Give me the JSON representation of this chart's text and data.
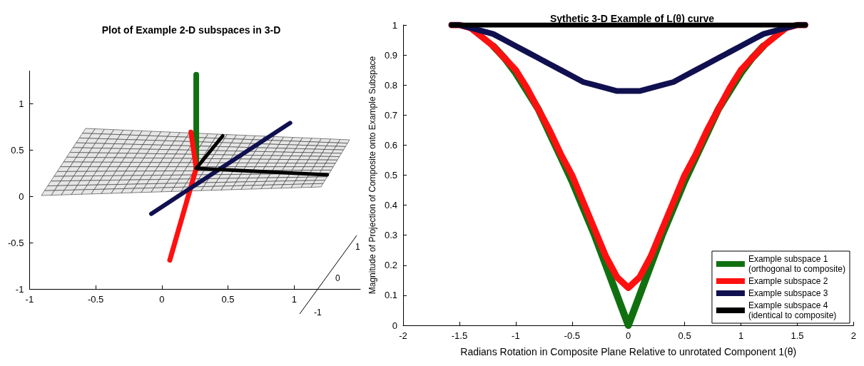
{
  "chart_data": [
    {
      "type": "line",
      "title": "Plot of Example 2-D subspaces in 3-D",
      "xlim": [
        -1,
        1.5
      ],
      "ylim": [
        -1,
        1.35
      ],
      "xticks": [
        -1,
        -0.5,
        0,
        0.5,
        1
      ],
      "yticks": [
        -1,
        -0.5,
        0,
        0.5,
        1
      ],
      "grid": false,
      "marker": "none",
      "line_style": "solid",
      "annotations": [
        "1",
        "0",
        "-1"
      ],
      "series": [
        {
          "color": "#107010",
          "x": [
            0.26,
            0.26
          ],
          "values": [
            1.31,
            0.3
          ]
        },
        {
          "color": "#ff1010",
          "x": [
            0.22,
            0.26,
            0.06
          ],
          "values": [
            0.69,
            0.3,
            -0.69
          ]
        },
        {
          "color": "#101050",
          "x": [
            -0.08,
            0.97
          ],
          "values": [
            -0.19,
            0.79
          ]
        },
        {
          "color": "#000000",
          "x": [
            0.46,
            0.26,
            1.25
          ],
          "values": [
            0.65,
            0.3,
            0.23
          ]
        }
      ]
    },
    {
      "type": "line",
      "title": "Sythetic 3-D Example of L(θ) curve",
      "xlabel": "Radians Rotation in Composite Plane Relative to unrotated Component 1(θ)",
      "ylabel": "Magnitude of Projection of Composite onto Example Subspace",
      "xlim": [
        -2,
        2
      ],
      "ylim": [
        0,
        1
      ],
      "xticks": [
        -2,
        -1.5,
        -1,
        -0.5,
        0,
        0.5,
        1,
        1.5,
        2
      ],
      "yticks": [
        0,
        0.1,
        0.2,
        0.3,
        0.4,
        0.5,
        0.6,
        0.7,
        0.8,
        0.9,
        1
      ],
      "grid": false,
      "legend": "bottom right",
      "marker": "none",
      "line_style": "solid",
      "x": [
        -1.57,
        -1.5,
        -1.4,
        -1.3,
        -1.2,
        -1.1,
        -1.0,
        -0.9,
        -0.8,
        -0.7,
        -0.6,
        -0.5,
        -0.4,
        -0.3,
        -0.2,
        -0.1,
        0,
        0.1,
        0.2,
        0.3,
        0.4,
        0.5,
        0.6,
        0.7,
        0.8,
        0.9,
        1.0,
        1.1,
        1.2,
        1.3,
        1.4,
        1.5,
        1.57
      ],
      "series": [
        {
          "name": "Example subspace 1\n(orthogonal to composite)",
          "color": "#107010",
          "values": [
            null,
            null,
            null,
            null,
            0.93,
            0.89,
            0.84,
            0.78,
            0.72,
            0.64,
            0.56,
            0.48,
            0.39,
            0.3,
            0.2,
            0.1,
            0,
            0.1,
            0.2,
            0.3,
            0.39,
            0.48,
            0.56,
            0.64,
            0.72,
            0.78,
            0.84,
            0.89,
            0.93,
            null,
            null,
            null,
            null
          ]
        },
        {
          "name": "Example subspace 2",
          "color": "#ff1010",
          "values": [
            1,
            1,
            0.99,
            0.96,
            0.93,
            0.89,
            0.85,
            0.79,
            0.72,
            0.65,
            0.57,
            0.5,
            0.41,
            0.32,
            0.23,
            0.16,
            0.125,
            0.16,
            0.23,
            0.32,
            0.41,
            0.5,
            0.57,
            0.65,
            0.72,
            0.79,
            0.85,
            0.89,
            0.93,
            0.96,
            0.99,
            1,
            1
          ]
        },
        {
          "name": "Example subspace 3",
          "color": "#101050",
          "values": [
            1,
            1,
            0.99,
            0.98,
            0.97,
            0.95,
            0.93,
            0.91,
            0.89,
            0.87,
            0.85,
            0.83,
            0.81,
            0.8,
            0.79,
            0.78,
            0.78,
            0.78,
            0.79,
            0.8,
            0.81,
            0.83,
            0.85,
            0.87,
            0.89,
            0.91,
            0.93,
            0.95,
            0.97,
            0.98,
            0.99,
            1,
            1
          ]
        },
        {
          "name": "Example subspace 4\n(identical to composite)",
          "color": "#000000",
          "values": [
            1,
            1,
            1,
            1,
            1,
            1,
            1,
            1,
            1,
            1,
            1,
            1,
            1,
            1,
            1,
            1,
            1,
            1,
            1,
            1,
            1,
            1,
            1,
            1,
            1,
            1,
            1,
            1,
            1,
            1,
            1,
            1,
            1
          ]
        }
      ]
    }
  ]
}
